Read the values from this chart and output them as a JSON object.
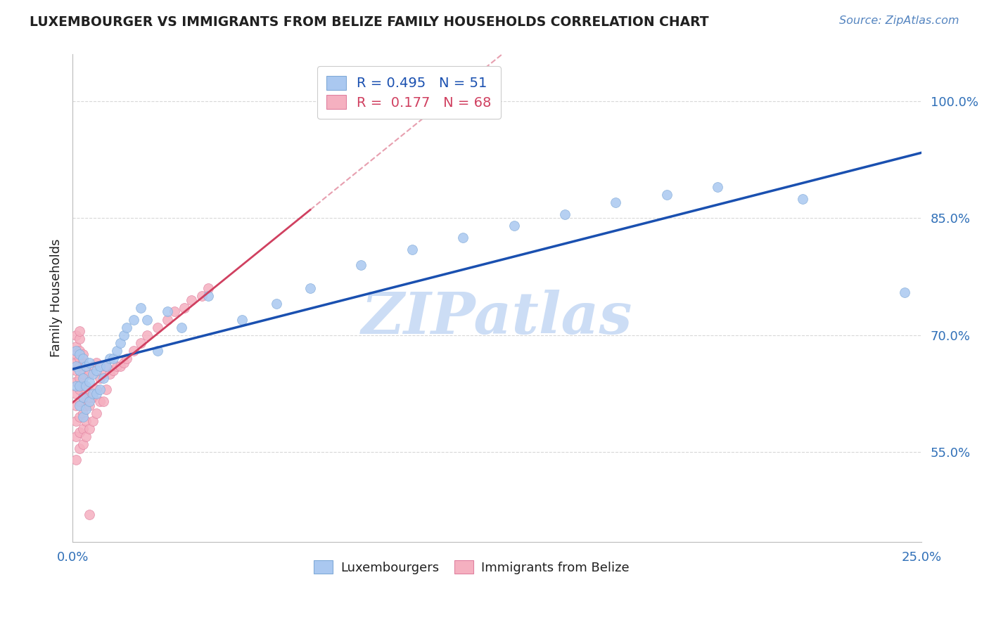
{
  "title": "LUXEMBOURGER VS IMMIGRANTS FROM BELIZE FAMILY HOUSEHOLDS CORRELATION CHART",
  "source": "Source: ZipAtlas.com",
  "ylabel": "Family Households",
  "y_ticks": [
    0.55,
    0.7,
    0.85,
    1.0
  ],
  "y_tick_labels": [
    "55.0%",
    "70.0%",
    "85.0%",
    "100.0%"
  ],
  "x_min": 0.0,
  "x_max": 0.25,
  "y_min": 0.435,
  "y_max": 1.06,
  "blue_color": "#aac8f0",
  "blue_edge_color": "#80aad8",
  "pink_color": "#f5b0c0",
  "pink_edge_color": "#e080a0",
  "blue_line_color": "#1a50b0",
  "pink_line_color": "#d04060",
  "blue_R": 0.495,
  "blue_N": 51,
  "pink_R": 0.177,
  "pink_N": 68,
  "watermark": "ZIPatlas",
  "watermark_color": "#ccddf5",
  "legend_label_blue": "Luxembourgers",
  "legend_label_pink": "Immigrants from Belize",
  "grid_color": "#d8d8d8",
  "title_color": "#202020",
  "tick_label_color": "#3070b8",
  "blue_scatter_x": [
    0.001,
    0.001,
    0.001,
    0.002,
    0.002,
    0.002,
    0.002,
    0.003,
    0.003,
    0.003,
    0.003,
    0.004,
    0.004,
    0.004,
    0.005,
    0.005,
    0.005,
    0.006,
    0.006,
    0.007,
    0.007,
    0.008,
    0.008,
    0.009,
    0.01,
    0.011,
    0.012,
    0.013,
    0.014,
    0.015,
    0.016,
    0.018,
    0.02,
    0.022,
    0.025,
    0.028,
    0.032,
    0.04,
    0.05,
    0.06,
    0.07,
    0.085,
    0.1,
    0.115,
    0.13,
    0.145,
    0.16,
    0.175,
    0.19,
    0.215,
    0.245
  ],
  "blue_scatter_y": [
    0.635,
    0.66,
    0.68,
    0.61,
    0.635,
    0.655,
    0.675,
    0.595,
    0.62,
    0.645,
    0.67,
    0.605,
    0.635,
    0.66,
    0.615,
    0.64,
    0.665,
    0.625,
    0.65,
    0.625,
    0.655,
    0.63,
    0.66,
    0.645,
    0.66,
    0.67,
    0.67,
    0.68,
    0.69,
    0.7,
    0.71,
    0.72,
    0.735,
    0.72,
    0.68,
    0.73,
    0.71,
    0.75,
    0.72,
    0.74,
    0.76,
    0.79,
    0.81,
    0.825,
    0.84,
    0.855,
    0.87,
    0.88,
    0.89,
    0.875,
    0.755
  ],
  "pink_scatter_x": [
    0.001,
    0.001,
    0.001,
    0.001,
    0.001,
    0.001,
    0.001,
    0.001,
    0.001,
    0.001,
    0.001,
    0.002,
    0.002,
    0.002,
    0.002,
    0.002,
    0.002,
    0.002,
    0.002,
    0.002,
    0.002,
    0.002,
    0.003,
    0.003,
    0.003,
    0.003,
    0.003,
    0.003,
    0.003,
    0.003,
    0.004,
    0.004,
    0.004,
    0.004,
    0.004,
    0.005,
    0.005,
    0.005,
    0.006,
    0.006,
    0.006,
    0.007,
    0.007,
    0.007,
    0.008,
    0.008,
    0.009,
    0.009,
    0.01,
    0.01,
    0.011,
    0.012,
    0.013,
    0.014,
    0.015,
    0.016,
    0.018,
    0.02,
    0.022,
    0.025,
    0.028,
    0.03,
    0.033,
    0.035,
    0.038,
    0.04,
    0.005,
    0.005
  ],
  "pink_scatter_y": [
    0.54,
    0.57,
    0.59,
    0.61,
    0.625,
    0.64,
    0.655,
    0.665,
    0.675,
    0.685,
    0.7,
    0.555,
    0.575,
    0.595,
    0.615,
    0.63,
    0.645,
    0.66,
    0.67,
    0.68,
    0.695,
    0.705,
    0.56,
    0.58,
    0.6,
    0.62,
    0.635,
    0.65,
    0.665,
    0.675,
    0.57,
    0.59,
    0.61,
    0.63,
    0.66,
    0.58,
    0.61,
    0.65,
    0.59,
    0.62,
    0.66,
    0.6,
    0.63,
    0.665,
    0.615,
    0.645,
    0.615,
    0.65,
    0.63,
    0.66,
    0.65,
    0.655,
    0.66,
    0.66,
    0.665,
    0.67,
    0.68,
    0.69,
    0.7,
    0.71,
    0.72,
    0.73,
    0.735,
    0.745,
    0.75,
    0.76,
    0.47,
    0.62
  ]
}
